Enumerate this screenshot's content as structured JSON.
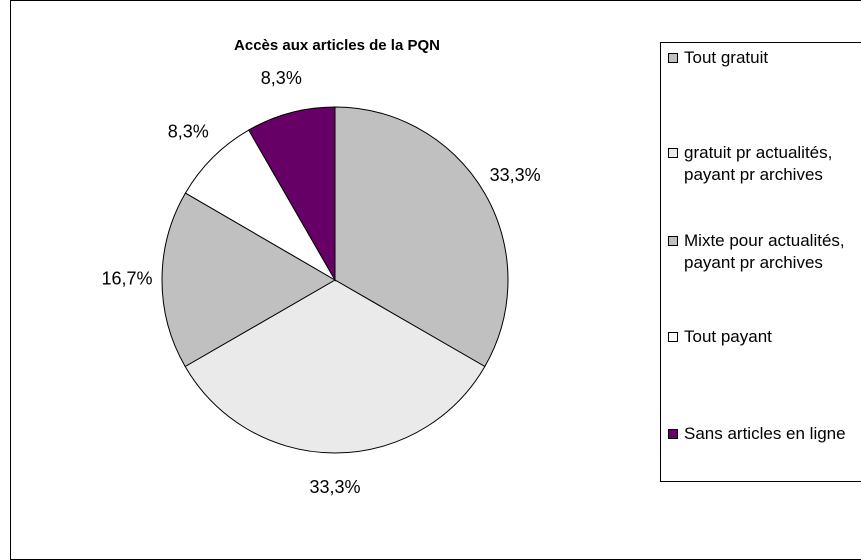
{
  "chart_data": {
    "type": "pie",
    "title": "Accès aux articles de la PQN",
    "categories": [
      "Tout gratuit",
      "gratuit pr actualités, payant pr archives",
      "Mixte pour actualités, payant pr archives",
      "Tout payant",
      "Sans articles en ligne"
    ],
    "values": [
      33.3,
      33.3,
      16.7,
      8.3,
      8.3
    ],
    "value_labels": [
      "33,3%",
      "33,3%",
      "16,7%",
      "8,3%",
      "8,3%"
    ],
    "colors": [
      "#c0c0c0",
      "#eaeaea",
      "#c0c0c0",
      "#ffffff",
      "#660066"
    ]
  }
}
